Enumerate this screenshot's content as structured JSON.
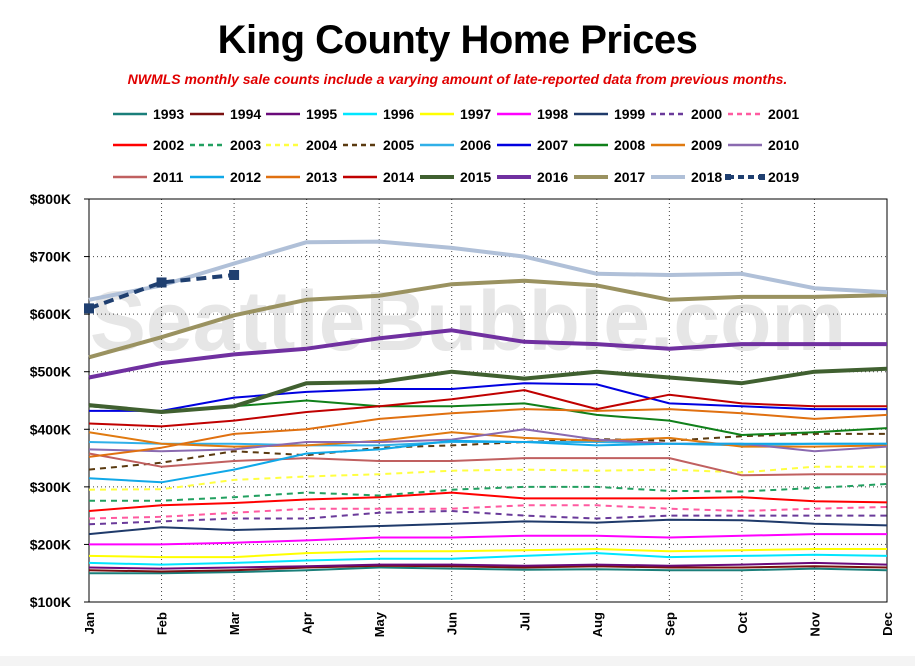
{
  "chart_data": {
    "type": "line",
    "title": "King County Home Prices",
    "subtitle": "NWMLS monthly sale counts include a varying amount of late-reported  data from previous months.",
    "watermark": "SeattleBubble.com",
    "categories": [
      "Jan",
      "Feb",
      "Mar",
      "Apr",
      "May",
      "Jun",
      "Jul",
      "Aug",
      "Sep",
      "Oct",
      "Nov",
      "Dec"
    ],
    "y_ticks": [
      100000,
      200000,
      300000,
      400000,
      500000,
      600000,
      700000,
      800000
    ],
    "y_tick_labels": [
      "$100K",
      "$200K",
      "$300K",
      "$400K",
      "$500K",
      "$600K",
      "$700K",
      "$800K"
    ],
    "ylim": [
      100000,
      800000
    ],
    "grid": true,
    "legend_position": "top",
    "series": [
      {
        "name": "1993",
        "color": "#1a7f7a",
        "style": "solid",
        "width": 2,
        "values": [
          150000,
          150000,
          152000,
          155000,
          160000,
          158000,
          156000,
          157000,
          155000,
          155000,
          158000,
          155000
        ]
      },
      {
        "name": "1994",
        "color": "#7a1010",
        "style": "solid",
        "width": 2,
        "values": [
          155000,
          153000,
          155000,
          160000,
          163000,
          162000,
          160000,
          162000,
          160000,
          160000,
          162000,
          160000
        ]
      },
      {
        "name": "1995",
        "color": "#6a0a7a",
        "style": "solid",
        "width": 2,
        "values": [
          160000,
          158000,
          160000,
          162000,
          165000,
          165000,
          163000,
          165000,
          163000,
          165000,
          168000,
          165000
        ]
      },
      {
        "name": "1996",
        "color": "#00e6ff",
        "style": "solid",
        "width": 2,
        "values": [
          168000,
          165000,
          168000,
          172000,
          175000,
          175000,
          180000,
          185000,
          178000,
          180000,
          182000,
          180000
        ]
      },
      {
        "name": "1997",
        "color": "#ffff00",
        "style": "solid",
        "width": 2,
        "values": [
          180000,
          178000,
          178000,
          185000,
          188000,
          188000,
          190000,
          192000,
          188000,
          190000,
          192000,
          192000
        ]
      },
      {
        "name": "1998",
        "color": "#ff00ff",
        "style": "solid",
        "width": 2,
        "values": [
          200000,
          200000,
          203000,
          207000,
          212000,
          212000,
          215000,
          215000,
          212000,
          215000,
          218000,
          218000
        ]
      },
      {
        "name": "1999",
        "color": "#1f3a6a",
        "style": "solid",
        "width": 2,
        "values": [
          218000,
          230000,
          225000,
          228000,
          232000,
          236000,
          240000,
          238000,
          243000,
          242000,
          236000,
          233000
        ]
      },
      {
        "name": "2000",
        "color": "#6a3a9a",
        "style": "dashed",
        "width": 2,
        "values": [
          235000,
          240000,
          245000,
          245000,
          255000,
          258000,
          250000,
          245000,
          250000,
          250000,
          250000,
          250000
        ]
      },
      {
        "name": "2001",
        "color": "#ff5aa0",
        "style": "dashed",
        "width": 2,
        "values": [
          245000,
          248000,
          255000,
          262000,
          262000,
          262000,
          268000,
          268000,
          262000,
          258000,
          262000,
          265000
        ]
      },
      {
        "name": "2002",
        "color": "#ff0000",
        "style": "solid",
        "width": 2,
        "values": [
          258000,
          268000,
          272000,
          278000,
          282000,
          290000,
          280000,
          280000,
          280000,
          282000,
          275000,
          273000
        ]
      },
      {
        "name": "2003",
        "color": "#22a060",
        "style": "dashed",
        "width": 2,
        "values": [
          276000,
          276000,
          282000,
          290000,
          285000,
          295000,
          300000,
          300000,
          293000,
          292000,
          298000,
          305000
        ]
      },
      {
        "name": "2004",
        "color": "#ffff40",
        "style": "dashed",
        "width": 2,
        "values": [
          295000,
          296000,
          312000,
          318000,
          322000,
          328000,
          330000,
          328000,
          330000,
          325000,
          335000,
          335000
        ]
      },
      {
        "name": "2005",
        "color": "#5a3a10",
        "style": "dashed",
        "width": 2,
        "values": [
          330000,
          342000,
          362000,
          355000,
          368000,
          372000,
          378000,
          383000,
          380000,
          388000,
          392000,
          392000
        ]
      },
      {
        "name": "2006",
        "color": "#30b0e8",
        "style": "solid",
        "width": 2,
        "values": [
          378000,
          375000,
          375000,
          372000,
          372000,
          378000,
          378000,
          378000,
          375000,
          372000,
          375000,
          375000
        ]
      },
      {
        "name": "2007",
        "color": "#0000e0",
        "style": "solid",
        "width": 2,
        "values": [
          432000,
          432000,
          455000,
          465000,
          470000,
          470000,
          480000,
          478000,
          445000,
          440000,
          435000,
          435000
        ]
      },
      {
        "name": "2008",
        "color": "#10801a",
        "style": "solid",
        "width": 2,
        "values": [
          440000,
          430000,
          440000,
          450000,
          440000,
          440000,
          445000,
          425000,
          415000,
          390000,
          395000,
          402000
        ]
      },
      {
        "name": "2009",
        "color": "#e07a10",
        "style": "solid",
        "width": 2,
        "values": [
          395000,
          375000,
          370000,
          372000,
          380000,
          395000,
          385000,
          380000,
          385000,
          370000,
          370000,
          372000
        ]
      },
      {
        "name": "2010",
        "color": "#8a6ab0",
        "style": "solid",
        "width": 2,
        "values": [
          365000,
          362000,
          365000,
          378000,
          378000,
          382000,
          400000,
          382000,
          375000,
          375000,
          362000,
          370000
        ]
      },
      {
        "name": "2011",
        "color": "#c06060",
        "style": "solid",
        "width": 2,
        "values": [
          358000,
          335000,
          345000,
          350000,
          345000,
          345000,
          350000,
          350000,
          350000,
          320000,
          322000,
          322000
        ]
      },
      {
        "name": "2012",
        "color": "#10a8e8",
        "style": "solid",
        "width": 2,
        "values": [
          315000,
          308000,
          330000,
          358000,
          365000,
          380000,
          378000,
          372000,
          375000,
          375000,
          375000,
          375000
        ]
      },
      {
        "name": "2013",
        "color": "#e07010",
        "style": "solid",
        "width": 2,
        "values": [
          352000,
          368000,
          392000,
          400000,
          418000,
          428000,
          435000,
          432000,
          435000,
          428000,
          418000,
          425000
        ]
      },
      {
        "name": "2014",
        "color": "#c00000",
        "style": "solid",
        "width": 2,
        "values": [
          410000,
          405000,
          415000,
          430000,
          440000,
          452000,
          468000,
          435000,
          460000,
          445000,
          440000,
          440000
        ]
      },
      {
        "name": "2015",
        "color": "#406030",
        "style": "solid",
        "width": 4,
        "values": [
          442000,
          430000,
          440000,
          480000,
          482000,
          500000,
          488000,
          500000,
          490000,
          480000,
          500000,
          505000
        ]
      },
      {
        "name": "2016",
        "color": "#7030a0",
        "style": "solid",
        "width": 4,
        "values": [
          490000,
          515000,
          530000,
          540000,
          558000,
          572000,
          552000,
          548000,
          540000,
          548000,
          548000,
          548000
        ]
      },
      {
        "name": "2017",
        "color": "#9a9260",
        "style": "solid",
        "width": 4,
        "values": [
          525000,
          560000,
          598000,
          625000,
          632000,
          652000,
          658000,
          650000,
          625000,
          630000,
          630000,
          633000
        ]
      },
      {
        "name": "2018",
        "color": "#b0c0d8",
        "style": "solid",
        "width": 4,
        "values": [
          625000,
          650000,
          688000,
          725000,
          726000,
          715000,
          700000,
          670000,
          668000,
          670000,
          645000,
          638000
        ]
      },
      {
        "name": "2019",
        "color": "#1f3f70",
        "style": "dashed",
        "width": 4,
        "markers": true,
        "values": [
          610000,
          655000,
          668000,
          null,
          null,
          null,
          null,
          null,
          null,
          null,
          null,
          null
        ]
      }
    ]
  }
}
